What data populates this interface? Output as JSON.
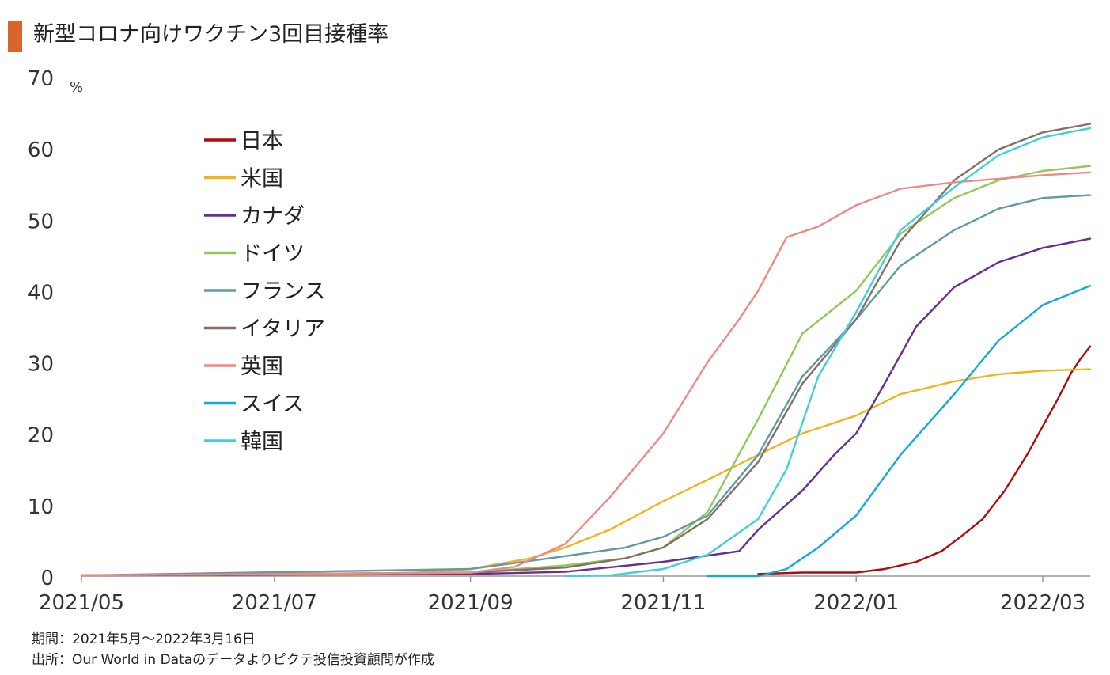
{
  "header": {
    "title": "新型コロナ向けワクチン3回目接種率"
  },
  "footer": {
    "period": "期間：2021年5月～2022年3月16日",
    "source": "出所：Our World in Dataのデータよりピクテ投信投資顧問が作成"
  },
  "chart_data": {
    "type": "line",
    "title": "新型コロナ向けワクチン3回目接種率",
    "ylabel": "%",
    "xlabel": "",
    "ylim": [
      0,
      70
    ],
    "yticks": [
      0,
      10,
      20,
      30,
      40,
      50,
      60,
      70
    ],
    "xlim": [
      "2021-05-01",
      "2022-03-16"
    ],
    "xticks": [
      {
        "date": "2021-05-01",
        "label": "2021/05"
      },
      {
        "date": "2021-07-01",
        "label": "2021/07"
      },
      {
        "date": "2021-09-01",
        "label": "2021/09"
      },
      {
        "date": "2021-11-01",
        "label": "2021/11"
      },
      {
        "date": "2022-01-01",
        "label": "2022/01"
      },
      {
        "date": "2022-03-01",
        "label": "2022/03"
      }
    ],
    "grid": false,
    "legend_position": "upper-left",
    "series": [
      {
        "name": "日本",
        "color": "#b00c0c",
        "points": [
          [
            "2021-12-01",
            0.3
          ],
          [
            "2021-12-15",
            0.5
          ],
          [
            "2022-01-01",
            0.5
          ],
          [
            "2022-01-10",
            1.0
          ],
          [
            "2022-01-20",
            2.0
          ],
          [
            "2022-01-28",
            3.5
          ],
          [
            "2022-02-03",
            5.5
          ],
          [
            "2022-02-10",
            8.0
          ],
          [
            "2022-02-17",
            12.0
          ],
          [
            "2022-02-24",
            17.0
          ],
          [
            "2022-03-01",
            21.0
          ],
          [
            "2022-03-06",
            25.0
          ],
          [
            "2022-03-10",
            28.5
          ],
          [
            "2022-03-13",
            30.5
          ],
          [
            "2022-03-16",
            32.2
          ]
        ]
      },
      {
        "name": "米国",
        "color": "#f0b41e",
        "points": [
          [
            "2021-05-01",
            0.1
          ],
          [
            "2021-08-01",
            0.2
          ],
          [
            "2021-08-20",
            0.6
          ],
          [
            "2021-09-01",
            1.0
          ],
          [
            "2021-09-20",
            2.5
          ],
          [
            "2021-10-01",
            4.0
          ],
          [
            "2021-10-15",
            6.5
          ],
          [
            "2021-11-01",
            10.5
          ],
          [
            "2021-11-15",
            13.5
          ],
          [
            "2021-12-01",
            17.0
          ],
          [
            "2021-12-15",
            20.0
          ],
          [
            "2022-01-01",
            22.5
          ],
          [
            "2022-01-15",
            25.5
          ],
          [
            "2022-02-01",
            27.3
          ],
          [
            "2022-02-15",
            28.3
          ],
          [
            "2022-03-01",
            28.8
          ],
          [
            "2022-03-16",
            29.0
          ]
        ]
      },
      {
        "name": "カナダ",
        "color": "#6a2e8f",
        "points": [
          [
            "2021-05-01",
            0.1
          ],
          [
            "2021-09-01",
            0.3
          ],
          [
            "2021-10-01",
            0.6
          ],
          [
            "2021-11-01",
            2.0
          ],
          [
            "2021-11-25",
            3.5
          ],
          [
            "2021-12-01",
            6.5
          ],
          [
            "2021-12-15",
            12.0
          ],
          [
            "2021-12-25",
            17.0
          ],
          [
            "2022-01-01",
            20.0
          ],
          [
            "2022-01-10",
            27.0
          ],
          [
            "2022-01-20",
            35.0
          ],
          [
            "2022-02-01",
            40.5
          ],
          [
            "2022-02-15",
            44.0
          ],
          [
            "2022-03-01",
            46.0
          ],
          [
            "2022-03-16",
            47.3
          ]
        ]
      },
      {
        "name": "ドイツ",
        "color": "#92c85a",
        "points": [
          [
            "2021-05-01",
            0.1
          ],
          [
            "2021-09-01",
            0.5
          ],
          [
            "2021-10-01",
            1.5
          ],
          [
            "2021-10-20",
            2.5
          ],
          [
            "2021-11-01",
            4.0
          ],
          [
            "2021-11-15",
            9.0
          ],
          [
            "2021-12-01",
            22.0
          ],
          [
            "2021-12-15",
            34.0
          ],
          [
            "2022-01-01",
            40.0
          ],
          [
            "2022-01-15",
            48.0
          ],
          [
            "2022-02-01",
            53.0
          ],
          [
            "2022-02-15",
            55.5
          ],
          [
            "2022-03-01",
            56.8
          ],
          [
            "2022-03-16",
            57.5
          ]
        ]
      },
      {
        "name": "フランス",
        "color": "#5f9aa6",
        "points": [
          [
            "2021-05-01",
            0.1
          ],
          [
            "2021-09-01",
            1.0
          ],
          [
            "2021-10-01",
            2.8
          ],
          [
            "2021-10-20",
            4.0
          ],
          [
            "2021-11-01",
            5.5
          ],
          [
            "2021-11-15",
            8.5
          ],
          [
            "2021-12-01",
            17.0
          ],
          [
            "2021-12-15",
            28.0
          ],
          [
            "2022-01-01",
            36.0
          ],
          [
            "2022-01-15",
            43.5
          ],
          [
            "2022-02-01",
            48.5
          ],
          [
            "2022-02-15",
            51.5
          ],
          [
            "2022-03-01",
            53.0
          ],
          [
            "2022-03-16",
            53.4
          ]
        ]
      },
      {
        "name": "イタリア",
        "color": "#857066",
        "points": [
          [
            "2021-05-01",
            0.1
          ],
          [
            "2021-09-01",
            0.5
          ],
          [
            "2021-10-01",
            1.2
          ],
          [
            "2021-10-20",
            2.5
          ],
          [
            "2021-11-01",
            4.0
          ],
          [
            "2021-11-15",
            8.0
          ],
          [
            "2021-12-01",
            16.0
          ],
          [
            "2021-12-15",
            27.0
          ],
          [
            "2022-01-01",
            36.0
          ],
          [
            "2022-01-15",
            47.0
          ],
          [
            "2022-02-01",
            55.5
          ],
          [
            "2022-02-15",
            59.8
          ],
          [
            "2022-03-01",
            62.2
          ],
          [
            "2022-03-16",
            63.4
          ]
        ]
      },
      {
        "name": "英国",
        "color": "#ee8a86",
        "points": [
          [
            "2021-05-01",
            0.1
          ],
          [
            "2021-09-01",
            0.5
          ],
          [
            "2021-09-15",
            1.3
          ],
          [
            "2021-10-01",
            4.5
          ],
          [
            "2021-10-15",
            11.0
          ],
          [
            "2021-11-01",
            20.0
          ],
          [
            "2021-11-15",
            30.0
          ],
          [
            "2021-11-25",
            36.0
          ],
          [
            "2021-12-01",
            40.0
          ],
          [
            "2021-12-10",
            47.5
          ],
          [
            "2021-12-20",
            49.0
          ],
          [
            "2022-01-01",
            52.0
          ],
          [
            "2022-01-15",
            54.3
          ],
          [
            "2022-02-01",
            55.2
          ],
          [
            "2022-03-01",
            56.2
          ],
          [
            "2022-03-16",
            56.6
          ]
        ]
      },
      {
        "name": "スイス",
        "color": "#13a9da",
        "points": [
          [
            "2021-11-15",
            0.0
          ],
          [
            "2021-12-01",
            0.0
          ],
          [
            "2021-12-10",
            1.0
          ],
          [
            "2021-12-20",
            4.0
          ],
          [
            "2022-01-01",
            8.5
          ],
          [
            "2022-01-15",
            17.0
          ],
          [
            "2022-02-01",
            25.5
          ],
          [
            "2022-02-15",
            33.0
          ],
          [
            "2022-03-01",
            38.0
          ],
          [
            "2022-03-16",
            40.7
          ]
        ]
      },
      {
        "name": "韓国",
        "color": "#3fd0dc",
        "points": [
          [
            "2021-10-01",
            0.0
          ],
          [
            "2021-10-15",
            0.1
          ],
          [
            "2021-11-01",
            1.0
          ],
          [
            "2021-11-15",
            3.0
          ],
          [
            "2021-12-01",
            8.0
          ],
          [
            "2021-12-10",
            15.0
          ],
          [
            "2021-12-20",
            28.0
          ],
          [
            "2022-01-01",
            37.0
          ],
          [
            "2022-01-15",
            48.5
          ],
          [
            "2022-02-01",
            54.5
          ],
          [
            "2022-02-15",
            59.0
          ],
          [
            "2022-03-01",
            61.5
          ],
          [
            "2022-03-16",
            62.8
          ]
        ]
      }
    ]
  }
}
